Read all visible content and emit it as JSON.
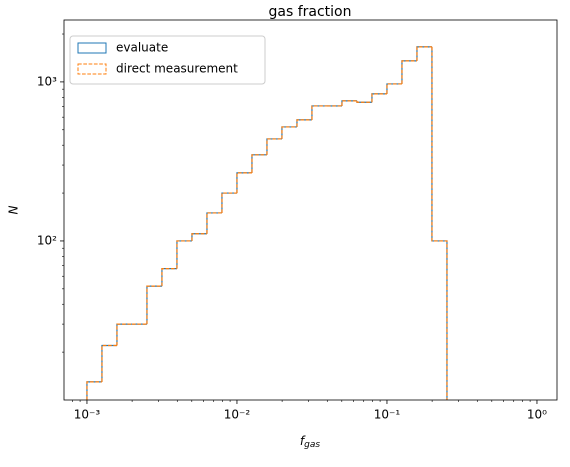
{
  "chart_data": {
    "type": "histogram",
    "title": "gas fraction",
    "xlabel": {
      "text": "f",
      "subscript": "gas"
    },
    "ylabel": "N",
    "xscale": "log",
    "yscale": "log",
    "xlim": [
      0.000703,
      1.36
    ],
    "ylim": [
      10,
      2450
    ],
    "xticks": [
      {
        "value": 0.001,
        "label": "10⁻³"
      },
      {
        "value": 0.01,
        "label": "10⁻²"
      },
      {
        "value": 0.1,
        "label": "10⁻¹"
      },
      {
        "value": 1,
        "label": "10⁰"
      }
    ],
    "yticks": [
      {
        "value": 100,
        "label": "10²"
      },
      {
        "value": 1000,
        "label": "10³"
      }
    ],
    "legend": "upper left",
    "bins": [
      0.001,
      0.001259,
      0.001585,
      0.001995,
      0.002512,
      0.003162,
      0.003981,
      0.005012,
      0.00631,
      0.007943,
      0.01,
      0.01259,
      0.01585,
      0.01995,
      0.02512,
      0.03162,
      0.03981,
      0.05012,
      0.0631,
      0.07943,
      0.1,
      0.1259,
      0.1585,
      0.1995,
      0.2512,
      0.3162,
      0.3981,
      0.5012,
      0.631,
      0.7943,
      1
    ],
    "series": [
      {
        "name": "evaluate",
        "color": "#1f77b4",
        "linestyle": "solid",
        "values": [
          13,
          22,
          30,
          30,
          52,
          67,
          100,
          111,
          150,
          200,
          268,
          348,
          438,
          521,
          577,
          706,
          706,
          760,
          745,
          841,
          971,
          1355,
          1660,
          100,
          0,
          0,
          0,
          0,
          0,
          0
        ]
      },
      {
        "name": "direct measurement",
        "color": "#ff7f0e",
        "linestyle": "dashed",
        "values": [
          13,
          22,
          30,
          30,
          52,
          67,
          100,
          111,
          150,
          200,
          268,
          348,
          438,
          521,
          577,
          706,
          706,
          760,
          745,
          841,
          971,
          1355,
          1660,
          100,
          0,
          0,
          0,
          0,
          0,
          0
        ]
      }
    ]
  }
}
